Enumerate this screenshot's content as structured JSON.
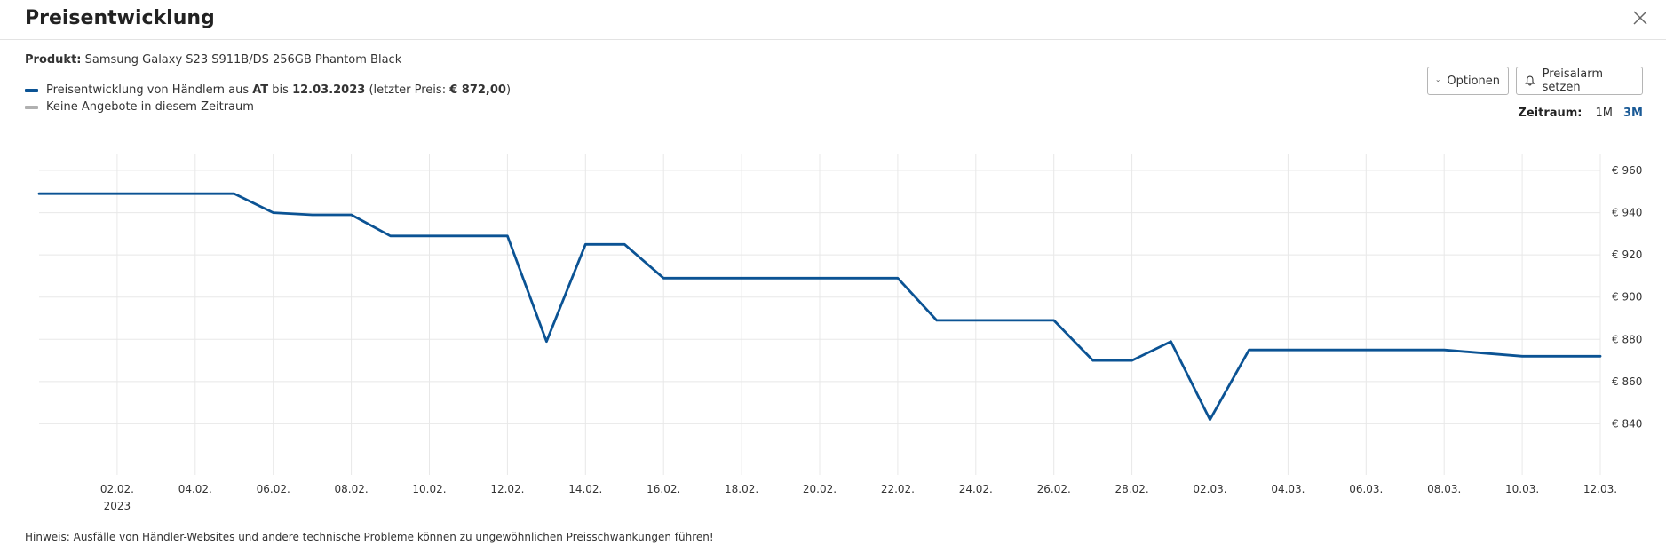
{
  "dialog": {
    "title": "Preisentwicklung",
    "close_icon": "close-icon"
  },
  "product": {
    "label": "Produkt:",
    "name": "Samsung Galaxy S23 S911B/DS 256GB Phantom Black"
  },
  "legend": {
    "price": {
      "text_pre": "Preisentwicklung von Händlern aus ",
      "country": "AT",
      "text_mid": " bis ",
      "date": "12.03.2023",
      "text_post": " (letzter Preis: ",
      "last_price": "€ 872,00",
      "text_end": ")",
      "color": "#0b5394"
    },
    "no_offers": {
      "text": "Keine Angebote in diesem Zeitraum",
      "color": "#b0b0b0"
    }
  },
  "buttons": {
    "options_label": "Optionen",
    "options_icon": "chevron-down-icon",
    "alarm_label": "Preisalarm setzen",
    "alarm_icon": "bell-icon"
  },
  "zeitraum": {
    "label": "Zeitraum:",
    "options": [
      "1M",
      "3M"
    ],
    "selected": "3M"
  },
  "hint": "Hinweis: Ausfälle von Händler-Websites und andere technische Probleme können zu ungewöhnlichen Preisschwankungen führen!",
  "chart_data": {
    "type": "line",
    "x_tick_labels": [
      "02.02.",
      "04.02.",
      "06.02.",
      "08.02.",
      "10.02.",
      "12.02.",
      "14.02.",
      "16.02.",
      "18.02.",
      "20.02.",
      "22.02.",
      "24.02.",
      "26.02.",
      "28.02.",
      "02.03.",
      "04.03.",
      "06.03.",
      "08.03.",
      "10.03.",
      "12.03."
    ],
    "x_year_label": "2023",
    "y_ticks": [
      840,
      860,
      880,
      900,
      920,
      940,
      960
    ],
    "y_tick_prefix": "€ ",
    "ylim": [
      820,
      968
    ],
    "xlim": [
      "2023-01-31",
      "2023-03-12"
    ],
    "grid": true,
    "series": [
      {
        "color": "#0b5394",
        "points": [
          [
            "2023-01-31",
            949
          ],
          [
            "2023-02-05",
            949
          ],
          [
            "2023-02-06",
            940
          ],
          [
            "2023-02-07",
            939
          ],
          [
            "2023-02-08",
            939
          ],
          [
            "2023-02-09",
            929
          ],
          [
            "2023-02-12",
            929
          ],
          [
            "2023-02-13",
            879
          ],
          [
            "2023-02-14",
            925
          ],
          [
            "2023-02-15",
            925
          ],
          [
            "2023-02-16",
            909
          ],
          [
            "2023-02-22",
            909
          ],
          [
            "2023-02-23",
            889
          ],
          [
            "2023-02-26",
            889
          ],
          [
            "2023-02-27",
            870
          ],
          [
            "2023-02-28",
            870
          ],
          [
            "2023-03-01",
            879
          ],
          [
            "2023-03-02",
            842
          ],
          [
            "2023-03-03",
            875
          ],
          [
            "2023-03-08",
            875
          ],
          [
            "2023-03-10",
            872
          ],
          [
            "2023-03-12",
            872
          ]
        ]
      }
    ]
  }
}
